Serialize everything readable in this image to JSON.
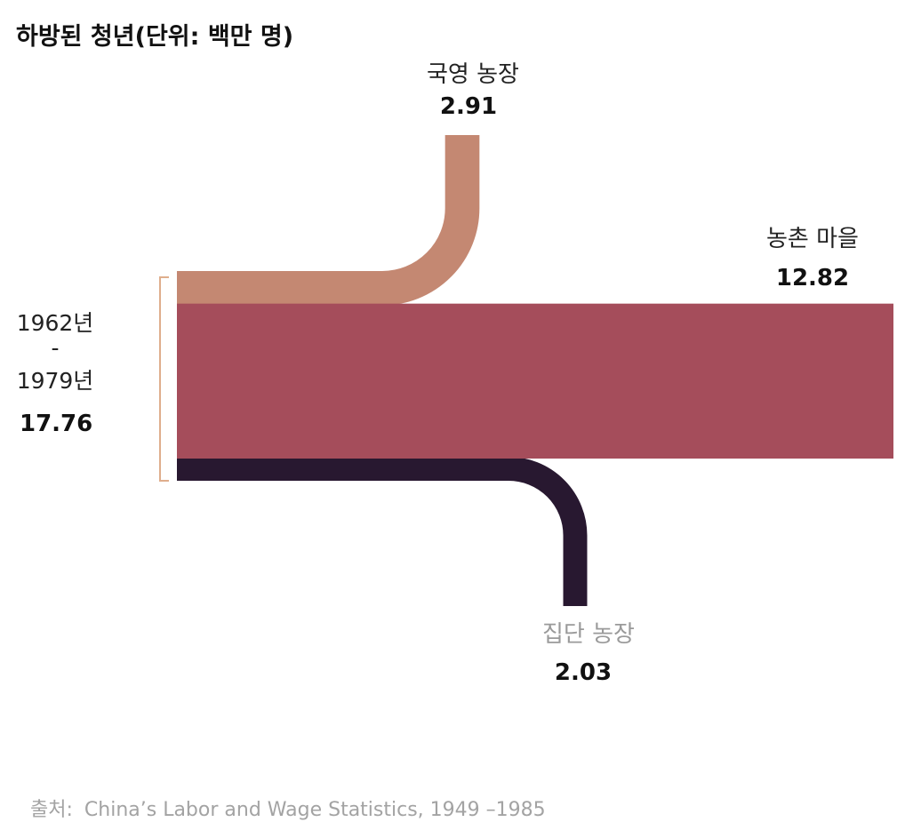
{
  "chart_data": {
    "type": "sankey",
    "title": "하방된 청년(단위: 백만 명)",
    "source": {
      "prefix": "출처:",
      "text": "China’s Labor and Wage Statistics, 1949 –1985"
    },
    "origin": {
      "period_start": "1962년",
      "period_sep": "-",
      "period_end": "1979년",
      "total": 17.76
    },
    "flows": [
      {
        "label": "국영 농장",
        "value": 2.91,
        "color": "#c48872"
      },
      {
        "label": "농촌 마을",
        "value": 12.82,
        "color": "#a54d5b"
      },
      {
        "label": "집단 농장",
        "value": 2.03,
        "color": "#281830"
      }
    ]
  }
}
